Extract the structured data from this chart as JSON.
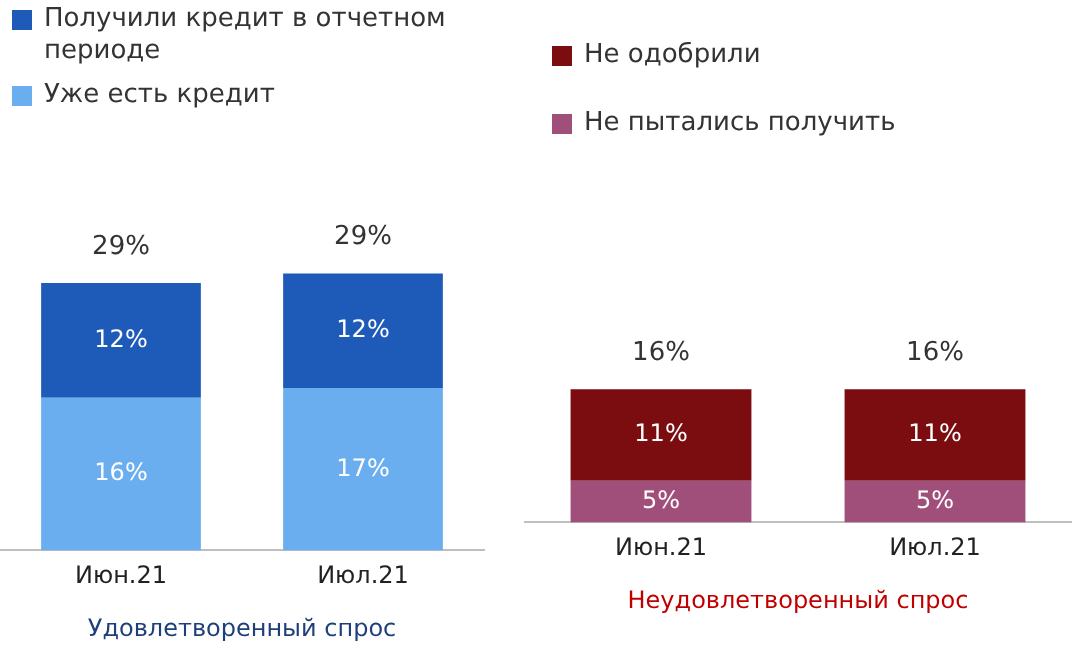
{
  "chart_data": [
    {
      "type": "bar",
      "stacked": true,
      "xlabel": "Удовлетворенный спрос",
      "categories": [
        "Июн.21",
        "Июл.21"
      ],
      "tick_labels": "x",
      "legend": "top",
      "grid": false,
      "series": [
        {
          "name": "Уже есть кредит",
          "color": "#6aaef0",
          "values": [
            16,
            17
          ],
          "value_labels": [
            "16%",
            "17%"
          ]
        },
        {
          "name": "Получили кредит в отчетном периоде",
          "color": "#1e5bb8",
          "values": [
            12,
            12
          ],
          "value_labels": [
            "12%",
            "12%"
          ]
        }
      ],
      "totals": [
        "29%",
        "29%"
      ]
    },
    {
      "type": "bar",
      "stacked": true,
      "xlabel": "Неудовлетворенный спрос",
      "categories": [
        "Июн.21",
        "Июл.21"
      ],
      "tick_labels": "x",
      "legend": "top",
      "grid": false,
      "series": [
        {
          "name": "Не пытались получить",
          "color": "#a04f7a",
          "values": [
            5,
            5
          ],
          "value_labels": [
            "5%",
            "5%"
          ]
        },
        {
          "name": "Не одобрили",
          "color": "#7b0c10",
          "values": [
            11,
            11
          ],
          "value_labels": [
            "11%",
            "11%"
          ]
        }
      ],
      "totals": [
        "16%",
        "16%"
      ]
    }
  ]
}
